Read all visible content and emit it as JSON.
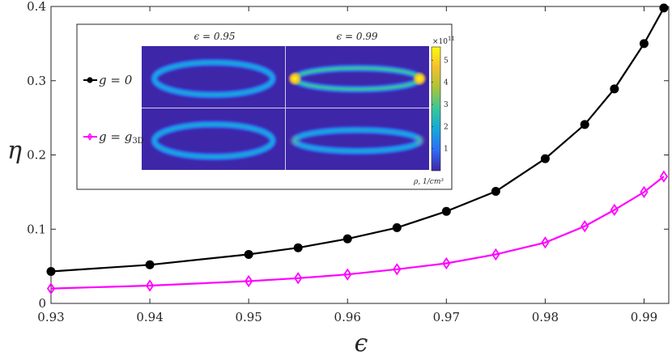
{
  "chart_data": {
    "type": "line",
    "xlabel": "ϵ",
    "ylabel": "η",
    "xlim": [
      0.93,
      0.9925
    ],
    "ylim": [
      0,
      0.4
    ],
    "x_ticks": [
      "0.93",
      "0.94",
      "0.95",
      "0.96",
      "0.97",
      "0.98",
      "0.99"
    ],
    "y_ticks": [
      "0",
      "0.1",
      "0.2",
      "0.3",
      "0.4"
    ],
    "series": [
      {
        "name": "g = 0",
        "color": "#000000",
        "marker": "circle",
        "x": [
          0.93,
          0.94,
          0.95,
          0.955,
          0.96,
          0.965,
          0.97,
          0.975,
          0.98,
          0.984,
          0.987,
          0.99,
          0.992
        ],
        "y": [
          0.043,
          0.052,
          0.066,
          0.075,
          0.087,
          0.102,
          0.124,
          0.151,
          0.195,
          0.241,
          0.289,
          0.35,
          0.398
        ]
      },
      {
        "name": "g = g3D",
        "color": "#ff00ff",
        "marker": "diamond",
        "x": [
          0.93,
          0.94,
          0.95,
          0.955,
          0.96,
          0.965,
          0.97,
          0.975,
          0.98,
          0.984,
          0.987,
          0.99,
          0.992
        ],
        "y": [
          0.02,
          0.024,
          0.03,
          0.034,
          0.039,
          0.046,
          0.054,
          0.066,
          0.082,
          0.104,
          0.126,
          0.15,
          0.171
        ]
      }
    ],
    "legend": {
      "placement": "inset-left",
      "entries": [
        {
          "main": "g = 0",
          "sub": ""
        },
        {
          "main": "g = g",
          "sub": "3D"
        }
      ]
    },
    "inset": {
      "col_titles": [
        "ϵ = 0.95",
        "ϵ = 0.99"
      ],
      "colorbar": {
        "exponent_label": "×10",
        "exponent_power": "11",
        "ticks": [
          "5",
          "4",
          "3",
          "2",
          "1"
        ],
        "label": "ρ, 1/cm³",
        "colormap": [
          "#3e26a8",
          "#2f6df5",
          "#15a9d6",
          "#39c69a",
          "#a8c43c",
          "#f5c02d",
          "#f9fb0e"
        ]
      },
      "panels": [
        {
          "row": 0,
          "col": 0,
          "intensity": 0.35,
          "hot": 0.0
        },
        {
          "row": 0,
          "col": 1,
          "intensity": 0.55,
          "hot": 1.0
        },
        {
          "row": 1,
          "col": 0,
          "intensity": 0.3,
          "hot": 0.0
        },
        {
          "row": 1,
          "col": 1,
          "intensity": 0.35,
          "hot": 0.15
        }
      ]
    }
  }
}
